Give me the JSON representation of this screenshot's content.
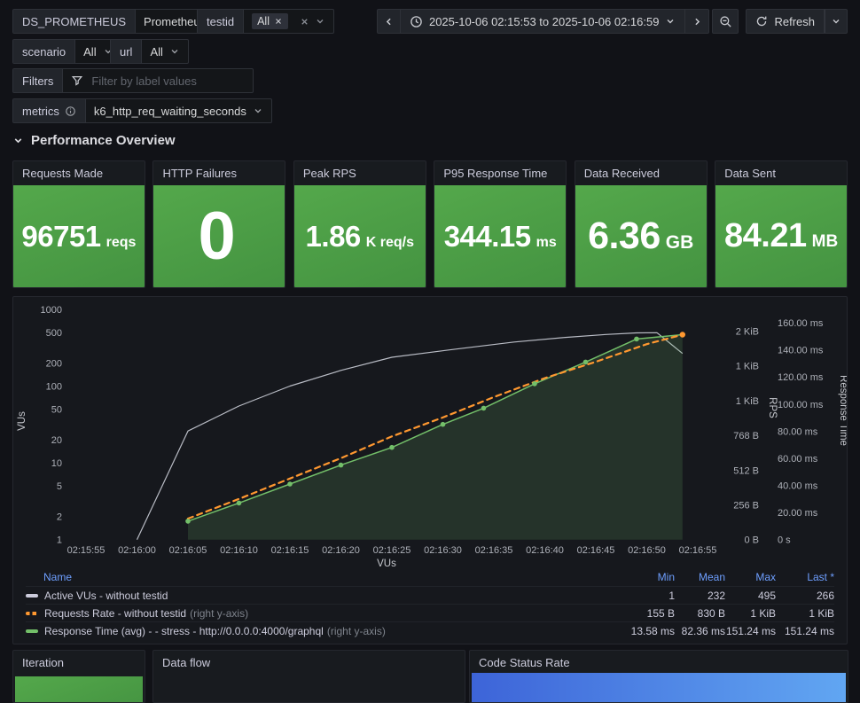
{
  "toolbar": {
    "variables": [
      {
        "label": "DS_PROMETHEUS",
        "value": "Prometheus"
      },
      {
        "label": "testid",
        "chip": "All"
      },
      {
        "label": "scenario",
        "value": "All"
      },
      {
        "label": "url",
        "value": "All"
      }
    ],
    "filters": {
      "label": "Filters",
      "placeholder": "Filter by label values"
    },
    "metrics": {
      "label": "metrics",
      "value": "k6_http_req_waiting_seconds"
    },
    "time_range": "2025-10-06 02:15:53 to 2025-10-06 02:16:59",
    "refresh_label": "Refresh"
  },
  "section": {
    "title": "Performance Overview"
  },
  "stats": {
    "panels": [
      {
        "title": "Requests Made",
        "value": "96751",
        "unit": "reqs"
      },
      {
        "title": "HTTP Failures",
        "value": "0",
        "unit": ""
      },
      {
        "title": "Peak RPS",
        "value": "1.86",
        "unit": "K req/s"
      },
      {
        "title": "P95 Response Time",
        "value": "344.15",
        "unit": "ms"
      },
      {
        "title": "Data Received",
        "value": "6.36",
        "unit": "GB"
      },
      {
        "title": "Data Sent",
        "value": "84.21",
        "unit": "MB"
      }
    ]
  },
  "chart_data": {
    "type": "line",
    "x_axis_label": "VUs",
    "x_start_time": "02:15:53",
    "y_left": {
      "title": "VUs",
      "scale": "log",
      "ticks": [
        1,
        2,
        5,
        10,
        20,
        50,
        100,
        200,
        500,
        1000
      ]
    },
    "y_right_rps": {
      "title": "RPS",
      "ticks": [
        {
          "v": 0,
          "label": "0 B"
        },
        {
          "v": 256,
          "label": "256 B"
        },
        {
          "v": 512,
          "label": "512 B"
        },
        {
          "v": 768,
          "label": "768 B"
        },
        {
          "v": 1024,
          "label": "1 KiB"
        },
        {
          "v": 1280,
          "label": "1 KiB"
        },
        {
          "v": 1536,
          "label": "2 KiB"
        }
      ]
    },
    "y_right_time": {
      "title": "Response Time",
      "ticks": [
        {
          "v": 0,
          "label": "0 s"
        },
        {
          "v": 20,
          "label": "20.00 ms"
        },
        {
          "v": 40,
          "label": "40.00 ms"
        },
        {
          "v": 60,
          "label": "60.00 ms"
        },
        {
          "v": 80,
          "label": "80.00 ms"
        },
        {
          "v": 100,
          "label": "100.00 ms"
        },
        {
          "v": 120,
          "label": "120.00 ms"
        },
        {
          "v": 140,
          "label": "140.00 ms"
        },
        {
          "v": 160,
          "label": "160.00 ms"
        }
      ]
    },
    "x_ticks": [
      {
        "t": 2,
        "label": "02:15:55"
      },
      {
        "t": 7,
        "label": "02:16:00"
      },
      {
        "t": 12,
        "label": "02:16:05"
      },
      {
        "t": 17,
        "label": "02:16:10"
      },
      {
        "t": 22,
        "label": "02:16:15"
      },
      {
        "t": 27,
        "label": "02:16:20"
      },
      {
        "t": 32,
        "label": "02:16:25"
      },
      {
        "t": 37,
        "label": "02:16:30"
      },
      {
        "t": 42,
        "label": "02:16:35"
      },
      {
        "t": 47,
        "label": "02:16:40"
      },
      {
        "t": 52,
        "label": "02:16:45"
      },
      {
        "t": 57,
        "label": "02:16:50"
      },
      {
        "t": 62,
        "label": "02:16:55"
      }
    ],
    "series": [
      {
        "name": "Active VUs - without testid",
        "axis": "vus",
        "color": "#b9bcc5",
        "style": "solid",
        "points": [
          [
            7,
            1
          ],
          [
            12,
            26
          ],
          [
            17,
            55
          ],
          [
            22,
            100
          ],
          [
            27,
            160
          ],
          [
            32,
            237
          ],
          [
            38,
            300
          ],
          [
            44,
            375
          ],
          [
            49,
            430
          ],
          [
            53,
            470
          ],
          [
            56,
            493
          ],
          [
            58,
            495
          ],
          [
            60.5,
            266
          ]
        ]
      },
      {
        "name": "Requests Rate - without testid",
        "axis": "rps",
        "color": "#ff9830",
        "style": "dashed",
        "points": [
          [
            12,
            155
          ],
          [
            17,
            300
          ],
          [
            22,
            450
          ],
          [
            27,
            600
          ],
          [
            32,
            760
          ],
          [
            37,
            900
          ],
          [
            42,
            1050
          ],
          [
            47,
            1190
          ],
          [
            52,
            1310
          ],
          [
            57,
            1440
          ],
          [
            60.5,
            1510
          ]
        ]
      },
      {
        "name": "Response Time (avg) - - stress - http://0.0.0.0:4000/graphql",
        "axis": "ms",
        "color": "#73bf69",
        "style": "solid-markers",
        "points": [
          [
            12,
            13.58
          ],
          [
            17,
            27
          ],
          [
            22,
            41
          ],
          [
            27,
            55
          ],
          [
            32,
            68
          ],
          [
            37,
            85
          ],
          [
            41,
            97
          ],
          [
            46,
            115
          ],
          [
            51,
            131
          ],
          [
            56,
            148
          ],
          [
            60.5,
            151.24
          ]
        ]
      }
    ]
  },
  "legend": {
    "headers": [
      "Name",
      "Min",
      "Mean",
      "Max",
      "Last *"
    ],
    "rows": [
      {
        "name": "Active VUs - without testid",
        "suffix": "",
        "min": "1",
        "mean": "232",
        "max": "495",
        "last": "266",
        "color": "#ccccdc",
        "dashed": false
      },
      {
        "name": "Requests Rate - without testid",
        "suffix": "(right y-axis)",
        "min": "155 B",
        "mean": "830 B",
        "max": "1 KiB",
        "last": "1 KiB",
        "color": "#ff9830",
        "dashed": true
      },
      {
        "name": "Response Time (avg) - - stress - http://0.0.0.0:4000/graphql",
        "suffix": "(right y-axis)",
        "min": "13.58 ms",
        "mean": "82.36 ms",
        "max": "151.24 ms",
        "last": "151.24 ms",
        "color": "#73bf69",
        "dashed": false
      }
    ]
  },
  "bottom_panels": [
    {
      "title": "Iteration"
    },
    {
      "title": "Data flow"
    },
    {
      "title": "Code Status Rate"
    }
  ],
  "colors": {
    "stat_green_light": "#54a84b",
    "stat_green_dark": "#449341",
    "bar_blue_start": "#3d64d8",
    "bar_blue_end": "#61a6f2",
    "legend_link_blue": "#6e9fff",
    "series_gray": "#b9bcc5",
    "series_orange": "#ff9830",
    "series_green": "#73bf69"
  }
}
